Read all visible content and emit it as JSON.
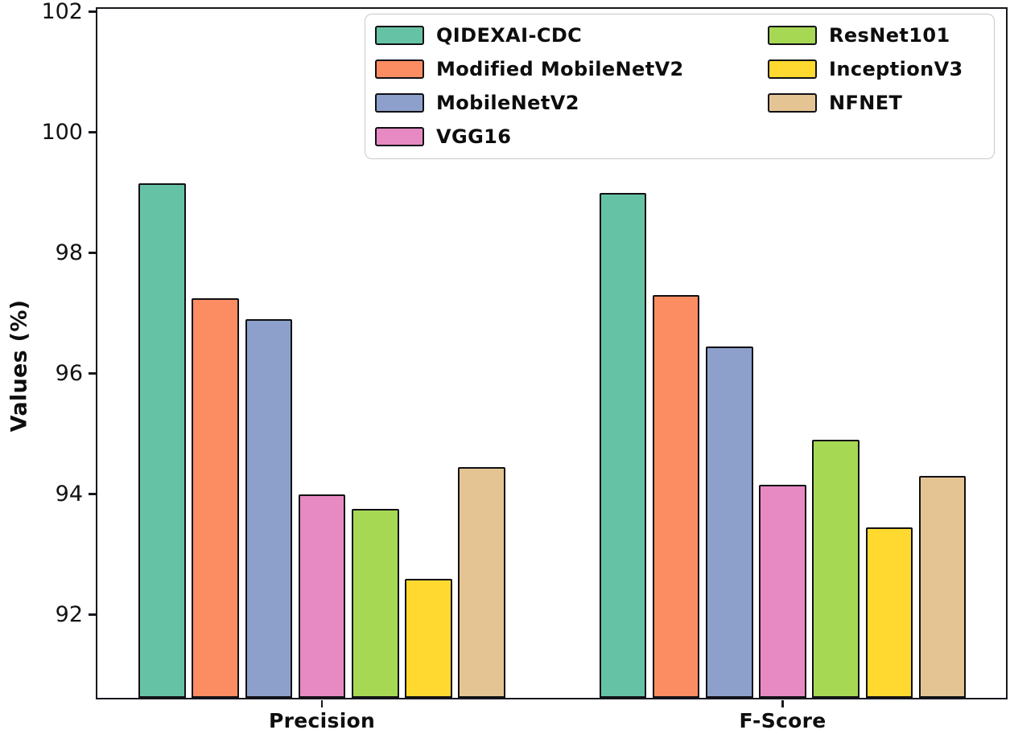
{
  "figure": {
    "background": "#ffffff",
    "spine_color": "#17171f",
    "bar_edge_color": "#101014"
  },
  "chart_data": {
    "type": "bar",
    "title": "",
    "xlabel": "",
    "ylabel": "Values (%)",
    "categories": [
      "Precision",
      "F-Score"
    ],
    "series": [
      {
        "name": "QIDEXAI-CDC",
        "color": "#66C2A5",
        "values": [
          99.15,
          99.0
        ]
      },
      {
        "name": "Modified MobileNetV2",
        "color": "#FC8D62",
        "values": [
          97.25,
          97.3
        ]
      },
      {
        "name": "MobileNetV2",
        "color": "#8DA0CB",
        "values": [
          96.9,
          96.45
        ]
      },
      {
        "name": "VGG16",
        "color": "#E78AC3",
        "values": [
          94.0,
          94.15
        ]
      },
      {
        "name": "ResNet101",
        "color": "#A6D854",
        "values": [
          93.75,
          94.9
        ]
      },
      {
        "name": "InceptionV3",
        "color": "#FFD92F",
        "values": [
          92.6,
          93.45
        ]
      },
      {
        "name": "NFNET",
        "color": "#E5C494",
        "values": [
          94.45,
          94.3
        ]
      }
    ],
    "ylim": [
      90.62,
      102.05
    ],
    "yticks": [
      92,
      94,
      96,
      98,
      100,
      102
    ],
    "grid": false,
    "legend": {
      "position": "upper center",
      "columns": [
        [
          "QIDEXAI-CDC",
          "Modified MobileNetV2",
          "MobileNetV2",
          "VGG16"
        ],
        [
          "ResNet101",
          "InceptionV3",
          "NFNET"
        ]
      ]
    }
  }
}
